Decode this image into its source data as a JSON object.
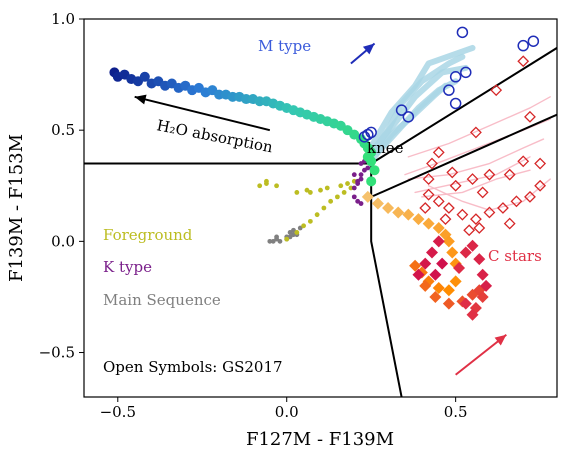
{
  "chart_data": {
    "type": "scatter",
    "xlabel": "F127M - F139M",
    "ylabel": "F139M - F153M",
    "xlim": [
      -0.6,
      0.8
    ],
    "ylim": [
      -0.7,
      1.0
    ],
    "xticks": [
      -0.5,
      0.0,
      0.5
    ],
    "xtick_labels": [
      "−0.5",
      "0.0",
      "0.5"
    ],
    "yticks": [
      -0.5,
      0.0,
      0.5,
      1.0
    ],
    "ytick_labels": [
      "−0.5",
      "0.0",
      "0.5",
      "1.0"
    ],
    "grid": false,
    "annotations": {
      "m_type": "M type",
      "h2o_absorption": "H₂O absorption",
      "knee": "knee",
      "c_stars": "C stars",
      "foreground": "Foreground",
      "k_type": "K type",
      "main_sequence": "Main Sequence",
      "open_symbols": "Open Symbols: GS2017"
    },
    "colors": {
      "m_type": "#3b5bdb",
      "c_stars": "#e03045",
      "foreground": "#bcbd22",
      "k_type": "#7a1f8a",
      "main_sequence": "#808080",
      "gs2017_m": "#1f2db8",
      "gs2017_c": "#d62728",
      "m_tracks": "#a9d6e5",
      "c_tracks": "#f7b6c2"
    },
    "boundary_lines": [
      {
        "name": "horizontal-divider",
        "x": [
          -0.6,
          0.25
        ],
        "y": [
          0.35,
          0.35
        ]
      },
      {
        "name": "upper-diagonal",
        "x": [
          0.25,
          0.8
        ],
        "y": [
          0.35,
          0.87
        ]
      },
      {
        "name": "lower-diagonal",
        "x": [
          0.25,
          0.8
        ],
        "y": [
          0.2,
          0.57
        ]
      },
      {
        "name": "vertical-divider",
        "x": [
          0.25,
          0.25,
          0.34
        ],
        "y": [
          0.35,
          0.0,
          -0.7
        ]
      }
    ],
    "arrows": [
      {
        "name": "h2o-arrow",
        "x": [
          -0.05,
          -0.45
        ],
        "y": [
          0.5,
          0.65
        ],
        "color": "#000000"
      },
      {
        "name": "m-type-arrow",
        "x": [
          0.19,
          0.26
        ],
        "y": [
          0.8,
          0.89
        ],
        "color": "#1f2db8"
      },
      {
        "name": "c-star-arrow",
        "x": [
          0.5,
          0.65
        ],
        "y": [
          -0.6,
          -0.42
        ],
        "color": "#e03045"
      }
    ],
    "series": [
      {
        "name": "Main Sequence",
        "marker": "dot",
        "color": "#808080",
        "points": [
          [
            -0.05,
            0.0
          ],
          [
            -0.04,
            0.0
          ],
          [
            -0.03,
            0.01
          ],
          [
            -0.02,
            0.0
          ],
          [
            -0.03,
            0.02
          ],
          [
            0.0,
            0.02
          ],
          [
            0.02,
            0.03
          ],
          [
            0.0,
            0.01
          ],
          [
            0.01,
            0.04
          ],
          [
            0.03,
            0.03
          ],
          [
            0.04,
            0.06
          ],
          [
            0.02,
            0.05
          ],
          [
            0.01,
            0.02
          ]
        ]
      },
      {
        "name": "Foreground",
        "marker": "dot",
        "color": "#bcbd22",
        "points": [
          [
            0.0,
            0.01
          ],
          [
            0.03,
            0.04
          ],
          [
            0.05,
            0.07
          ],
          [
            0.07,
            0.09
          ],
          [
            0.09,
            0.12
          ],
          [
            0.11,
            0.15
          ],
          [
            0.13,
            0.18
          ],
          [
            0.15,
            0.2
          ],
          [
            0.17,
            0.22
          ],
          [
            0.19,
            0.24
          ],
          [
            0.2,
            0.27
          ],
          [
            0.18,
            0.26
          ],
          [
            0.16,
            0.25
          ],
          [
            0.12,
            0.24
          ],
          [
            0.1,
            0.23
          ],
          [
            0.06,
            0.23
          ],
          [
            -0.06,
            0.26
          ],
          [
            -0.08,
            0.25
          ],
          [
            -0.06,
            0.27
          ],
          [
            -0.03,
            0.25
          ],
          [
            0.03,
            0.22
          ],
          [
            0.07,
            0.22
          ]
        ]
      },
      {
        "name": "K type",
        "marker": "dot",
        "color": "#7a1f8a",
        "points": [
          [
            0.2,
            0.24
          ],
          [
            0.21,
            0.26
          ],
          [
            0.22,
            0.28
          ],
          [
            0.22,
            0.3
          ],
          [
            0.23,
            0.32
          ],
          [
            0.24,
            0.33
          ],
          [
            0.23,
            0.36
          ],
          [
            0.24,
            0.38
          ],
          [
            0.22,
            0.35
          ],
          [
            0.21,
            0.27
          ],
          [
            0.2,
            0.3
          ],
          [
            0.2,
            0.2
          ],
          [
            0.21,
            0.18
          ],
          [
            0.22,
            0.17
          ]
        ]
      },
      {
        "name": "M type",
        "marker": "dot",
        "gradient": [
          "#0d1f8c",
          "#2c7bd6",
          "#35c6b3",
          "#33e07a"
        ],
        "points": [
          [
            -0.51,
            0.76
          ],
          [
            -0.5,
            0.74
          ],
          [
            -0.48,
            0.75
          ],
          [
            -0.46,
            0.73
          ],
          [
            -0.44,
            0.72
          ],
          [
            -0.42,
            0.74
          ],
          [
            -0.4,
            0.71
          ],
          [
            -0.38,
            0.72
          ],
          [
            -0.36,
            0.7
          ],
          [
            -0.34,
            0.71
          ],
          [
            -0.32,
            0.69
          ],
          [
            -0.3,
            0.7
          ],
          [
            -0.28,
            0.68
          ],
          [
            -0.26,
            0.69
          ],
          [
            -0.24,
            0.67
          ],
          [
            -0.22,
            0.68
          ],
          [
            -0.2,
            0.66
          ],
          [
            -0.18,
            0.66
          ],
          [
            -0.16,
            0.65
          ],
          [
            -0.14,
            0.65
          ],
          [
            -0.12,
            0.64
          ],
          [
            -0.1,
            0.64
          ],
          [
            -0.08,
            0.63
          ],
          [
            -0.06,
            0.63
          ],
          [
            -0.04,
            0.62
          ],
          [
            -0.02,
            0.61
          ],
          [
            0.0,
            0.6
          ],
          [
            0.02,
            0.59
          ],
          [
            0.04,
            0.58
          ],
          [
            0.06,
            0.57
          ],
          [
            0.08,
            0.56
          ],
          [
            0.1,
            0.55
          ],
          [
            0.12,
            0.54
          ],
          [
            0.14,
            0.53
          ],
          [
            0.16,
            0.52
          ],
          [
            0.18,
            0.5
          ],
          [
            0.2,
            0.48
          ],
          [
            0.22,
            0.46
          ],
          [
            0.23,
            0.44
          ],
          [
            0.24,
            0.42
          ],
          [
            0.25,
            0.4
          ]
        ]
      },
      {
        "name": "Knee",
        "marker": "dot",
        "color": "#33e07a",
        "points": [
          [
            0.24,
            0.38
          ],
          [
            0.25,
            0.36
          ],
          [
            0.26,
            0.32
          ],
          [
            0.25,
            0.27
          ]
        ]
      },
      {
        "name": "C stars",
        "marker": "diamond",
        "gradient": [
          "#f5c16c",
          "#ff8c00",
          "#e03045",
          "#d0104c"
        ],
        "points": [
          [
            0.24,
            0.2
          ],
          [
            0.27,
            0.17
          ],
          [
            0.3,
            0.15
          ],
          [
            0.33,
            0.13
          ],
          [
            0.36,
            0.12
          ],
          [
            0.39,
            0.1
          ],
          [
            0.42,
            0.08
          ],
          [
            0.45,
            0.06
          ],
          [
            0.47,
            0.03
          ],
          [
            0.48,
            0.0
          ],
          [
            0.49,
            -0.05
          ],
          [
            0.5,
            -0.1
          ],
          [
            0.5,
            -0.18
          ],
          [
            0.48,
            -0.22
          ],
          [
            0.45,
            -0.21
          ],
          [
            0.42,
            -0.18
          ],
          [
            0.4,
            -0.14
          ],
          [
            0.38,
            -0.11
          ],
          [
            0.41,
            -0.2
          ],
          [
            0.44,
            -0.25
          ],
          [
            0.48,
            -0.28
          ],
          [
            0.52,
            -0.27
          ],
          [
            0.55,
            -0.24
          ],
          [
            0.57,
            -0.22
          ],
          [
            0.58,
            -0.25
          ],
          [
            0.56,
            -0.3
          ],
          [
            0.55,
            -0.33
          ],
          [
            0.53,
            -0.28
          ],
          [
            0.51,
            -0.12
          ],
          [
            0.53,
            -0.05
          ],
          [
            0.55,
            -0.02
          ],
          [
            0.57,
            -0.08
          ],
          [
            0.58,
            -0.15
          ],
          [
            0.59,
            -0.2
          ],
          [
            0.45,
            0.0
          ],
          [
            0.43,
            -0.05
          ],
          [
            0.41,
            -0.1
          ],
          [
            0.39,
            -0.15
          ],
          [
            0.44,
            -0.15
          ],
          [
            0.46,
            -0.1
          ]
        ]
      },
      {
        "name": "GS2017 M",
        "marker": "open-circle",
        "color": "#1f2db8",
        "points": [
          [
            0.52,
            0.94
          ],
          [
            0.7,
            0.88
          ],
          [
            0.73,
            0.9
          ],
          [
            0.5,
            0.74
          ],
          [
            0.53,
            0.76
          ],
          [
            0.48,
            0.68
          ],
          [
            0.5,
            0.62
          ],
          [
            0.34,
            0.59
          ],
          [
            0.36,
            0.56
          ],
          [
            0.25,
            0.49
          ],
          [
            0.24,
            0.48
          ],
          [
            0.23,
            0.47
          ]
        ]
      },
      {
        "name": "GS2017 C",
        "marker": "open-diamond",
        "color": "#d62728",
        "points": [
          [
            0.7,
            0.81
          ],
          [
            0.62,
            0.68
          ],
          [
            0.72,
            0.56
          ],
          [
            0.56,
            0.49
          ],
          [
            0.45,
            0.4
          ],
          [
            0.49,
            0.31
          ],
          [
            0.42,
            0.28
          ],
          [
            0.58,
            0.22
          ],
          [
            0.66,
            0.3
          ],
          [
            0.7,
            0.36
          ],
          [
            0.75,
            0.35
          ],
          [
            0.6,
            0.3
          ],
          [
            0.55,
            0.28
          ],
          [
            0.5,
            0.25
          ],
          [
            0.45,
            0.18
          ],
          [
            0.48,
            0.15
          ],
          [
            0.52,
            0.12
          ],
          [
            0.56,
            0.1
          ],
          [
            0.6,
            0.13
          ],
          [
            0.64,
            0.15
          ],
          [
            0.68,
            0.18
          ],
          [
            0.72,
            0.2
          ],
          [
            0.75,
            0.25
          ],
          [
            0.54,
            0.05
          ],
          [
            0.57,
            0.06
          ],
          [
            0.43,
            0.35
          ],
          [
            0.42,
            0.21
          ],
          [
            0.41,
            0.15
          ],
          [
            0.47,
            0.1
          ],
          [
            0.66,
            0.08
          ]
        ]
      }
    ],
    "tracks": {
      "m_type": {
        "color": "#a9d6e5",
        "lines": [
          [
            [
              0.24,
              0.4
            ],
            [
              0.31,
              0.58
            ],
            [
              0.38,
              0.7
            ],
            [
              0.42,
              0.8
            ],
            [
              0.55,
              0.87
            ]
          ],
          [
            [
              0.25,
              0.39
            ],
            [
              0.3,
              0.5
            ],
            [
              0.34,
              0.62
            ],
            [
              0.4,
              0.72
            ],
            [
              0.48,
              0.8
            ],
            [
              0.52,
              0.83
            ]
          ],
          [
            [
              0.26,
              0.38
            ],
            [
              0.31,
              0.48
            ],
            [
              0.37,
              0.56
            ],
            [
              0.44,
              0.66
            ],
            [
              0.47,
              0.7
            ]
          ],
          [
            [
              0.27,
              0.4
            ],
            [
              0.33,
              0.5
            ],
            [
              0.39,
              0.6
            ],
            [
              0.45,
              0.68
            ],
            [
              0.5,
              0.72
            ]
          ],
          [
            [
              0.26,
              0.42
            ],
            [
              0.33,
              0.55
            ],
            [
              0.38,
              0.65
            ],
            [
              0.46,
              0.76
            ],
            [
              0.53,
              0.78
            ]
          ]
        ]
      },
      "c_stars": {
        "color": "#f7b6c2",
        "lines": [
          [
            [
              0.36,
              0.38
            ],
            [
              0.48,
              0.44
            ],
            [
              0.6,
              0.52
            ],
            [
              0.72,
              0.6
            ],
            [
              0.78,
              0.65
            ]
          ],
          [
            [
              0.35,
              0.3
            ],
            [
              0.46,
              0.36
            ],
            [
              0.58,
              0.43
            ],
            [
              0.7,
              0.5
            ],
            [
              0.78,
              0.55
            ]
          ],
          [
            [
              0.36,
              0.28
            ],
            [
              0.48,
              0.3
            ],
            [
              0.6,
              0.35
            ],
            [
              0.7,
              0.42
            ],
            [
              0.76,
              0.46
            ]
          ],
          [
            [
              0.38,
              0.22
            ],
            [
              0.5,
              0.26
            ],
            [
              0.62,
              0.3
            ],
            [
              0.72,
              0.38
            ]
          ],
          [
            [
              0.4,
              0.2
            ],
            [
              0.52,
              0.22
            ],
            [
              0.62,
              0.28
            ],
            [
              0.72,
              0.32
            ]
          ],
          [
            [
              0.42,
              0.25
            ],
            [
              0.52,
              0.18
            ],
            [
              0.6,
              0.14
            ],
            [
              0.7,
              0.18
            ],
            [
              0.78,
              0.28
            ]
          ]
        ]
      }
    }
  }
}
